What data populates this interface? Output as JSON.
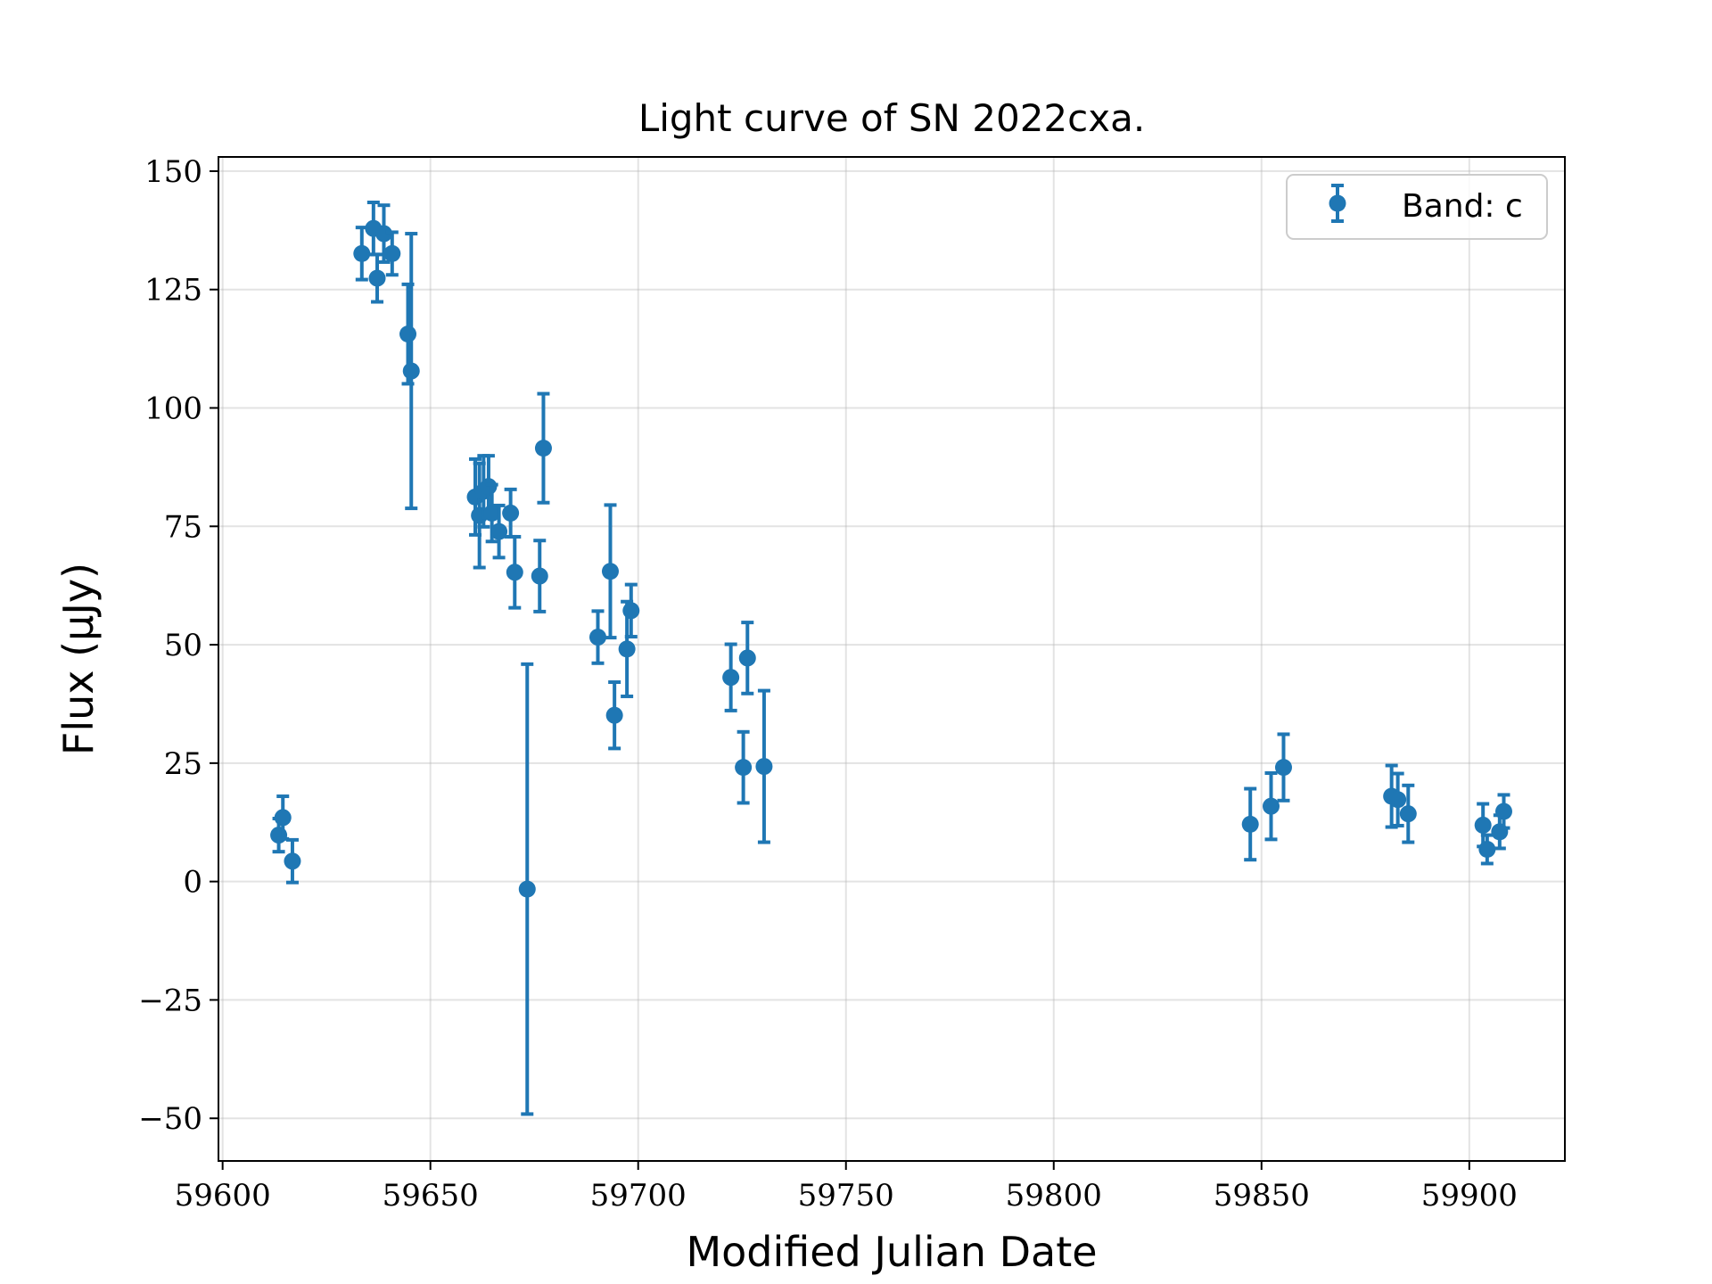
{
  "chart_data": {
    "type": "scatter",
    "title": "Light curve of SN 2022cxa.",
    "xlabel": "Modified Julian Date",
    "ylabel": "Flux (μJy)",
    "xlim": [
      59599,
      59923
    ],
    "ylim": [
      -59,
      153
    ],
    "xticks": [
      59600,
      59650,
      59700,
      59750,
      59800,
      59850,
      59900
    ],
    "yticks": [
      -50,
      -25,
      0,
      25,
      50,
      75,
      100,
      125,
      150
    ],
    "xtick_labels": [
      "59600",
      "59650",
      "59700",
      "59750",
      "59800",
      "59850",
      "59900"
    ],
    "ytick_labels": [
      "−50",
      "−25",
      "0",
      "25",
      "50",
      "75",
      "100",
      "125",
      "150"
    ],
    "grid": true,
    "legend_position": "top-right",
    "color": "#1f77b4",
    "series": [
      {
        "name": "Band: c",
        "points": [
          {
            "x": 59613.5,
            "y": 9.8,
            "err": 3.5
          },
          {
            "x": 59614.5,
            "y": 13.5,
            "err": 4.5
          },
          {
            "x": 59616.8,
            "y": 4.3,
            "err": 4.5
          },
          {
            "x": 59633.5,
            "y": 132.6,
            "err": 5.5
          },
          {
            "x": 59636.3,
            "y": 137.9,
            "err": 5.5
          },
          {
            "x": 59637.2,
            "y": 127.4,
            "err": 5.0
          },
          {
            "x": 59638.8,
            "y": 136.8,
            "err": 6.0
          },
          {
            "x": 59640.8,
            "y": 132.6,
            "err": 4.5
          },
          {
            "x": 59644.6,
            "y": 115.6,
            "err": 10.5
          },
          {
            "x": 59645.4,
            "y": 107.8,
            "err": 29.0
          },
          {
            "x": 59660.8,
            "y": 81.2,
            "err": 8.0
          },
          {
            "x": 59661.8,
            "y": 77.3,
            "err": 11.0
          },
          {
            "x": 59662.8,
            "y": 82.4,
            "err": 7.5
          },
          {
            "x": 59664.0,
            "y": 83.4,
            "err": 6.5
          },
          {
            "x": 59664.8,
            "y": 77.8,
            "err": 6.0
          },
          {
            "x": 59666.5,
            "y": 73.9,
            "err": 5.5
          },
          {
            "x": 59669.3,
            "y": 77.8,
            "err": 5.0
          },
          {
            "x": 59670.3,
            "y": 65.3,
            "err": 7.5
          },
          {
            "x": 59673.3,
            "y": -1.6,
            "err": 47.5
          },
          {
            "x": 59676.3,
            "y": 64.5,
            "err": 7.5
          },
          {
            "x": 59677.2,
            "y": 91.5,
            "err": 11.5
          },
          {
            "x": 59690.3,
            "y": 51.6,
            "err": 5.5
          },
          {
            "x": 59693.3,
            "y": 65.5,
            "err": 14.0
          },
          {
            "x": 59694.3,
            "y": 35.1,
            "err": 7.0
          },
          {
            "x": 59697.3,
            "y": 49.1,
            "err": 10.0
          },
          {
            "x": 59698.3,
            "y": 57.2,
            "err": 5.5
          },
          {
            "x": 59722.3,
            "y": 43.1,
            "err": 7.0
          },
          {
            "x": 59725.3,
            "y": 24.1,
            "err": 7.5
          },
          {
            "x": 59726.3,
            "y": 47.2,
            "err": 7.5
          },
          {
            "x": 59730.3,
            "y": 24.3,
            "err": 16.0
          },
          {
            "x": 59847.3,
            "y": 12.1,
            "err": 7.5
          },
          {
            "x": 59852.3,
            "y": 15.9,
            "err": 7.0
          },
          {
            "x": 59855.3,
            "y": 24.1,
            "err": 7.0
          },
          {
            "x": 59881.3,
            "y": 18.0,
            "err": 6.5
          },
          {
            "x": 59882.8,
            "y": 17.3,
            "err": 5.5
          },
          {
            "x": 59885.3,
            "y": 14.3,
            "err": 6.0
          },
          {
            "x": 59903.3,
            "y": 11.9,
            "err": 4.5
          },
          {
            "x": 59904.3,
            "y": 6.8,
            "err": 3.0
          },
          {
            "x": 59907.3,
            "y": 10.5,
            "err": 3.5
          },
          {
            "x": 59908.3,
            "y": 14.8,
            "err": 3.5
          }
        ]
      }
    ]
  }
}
